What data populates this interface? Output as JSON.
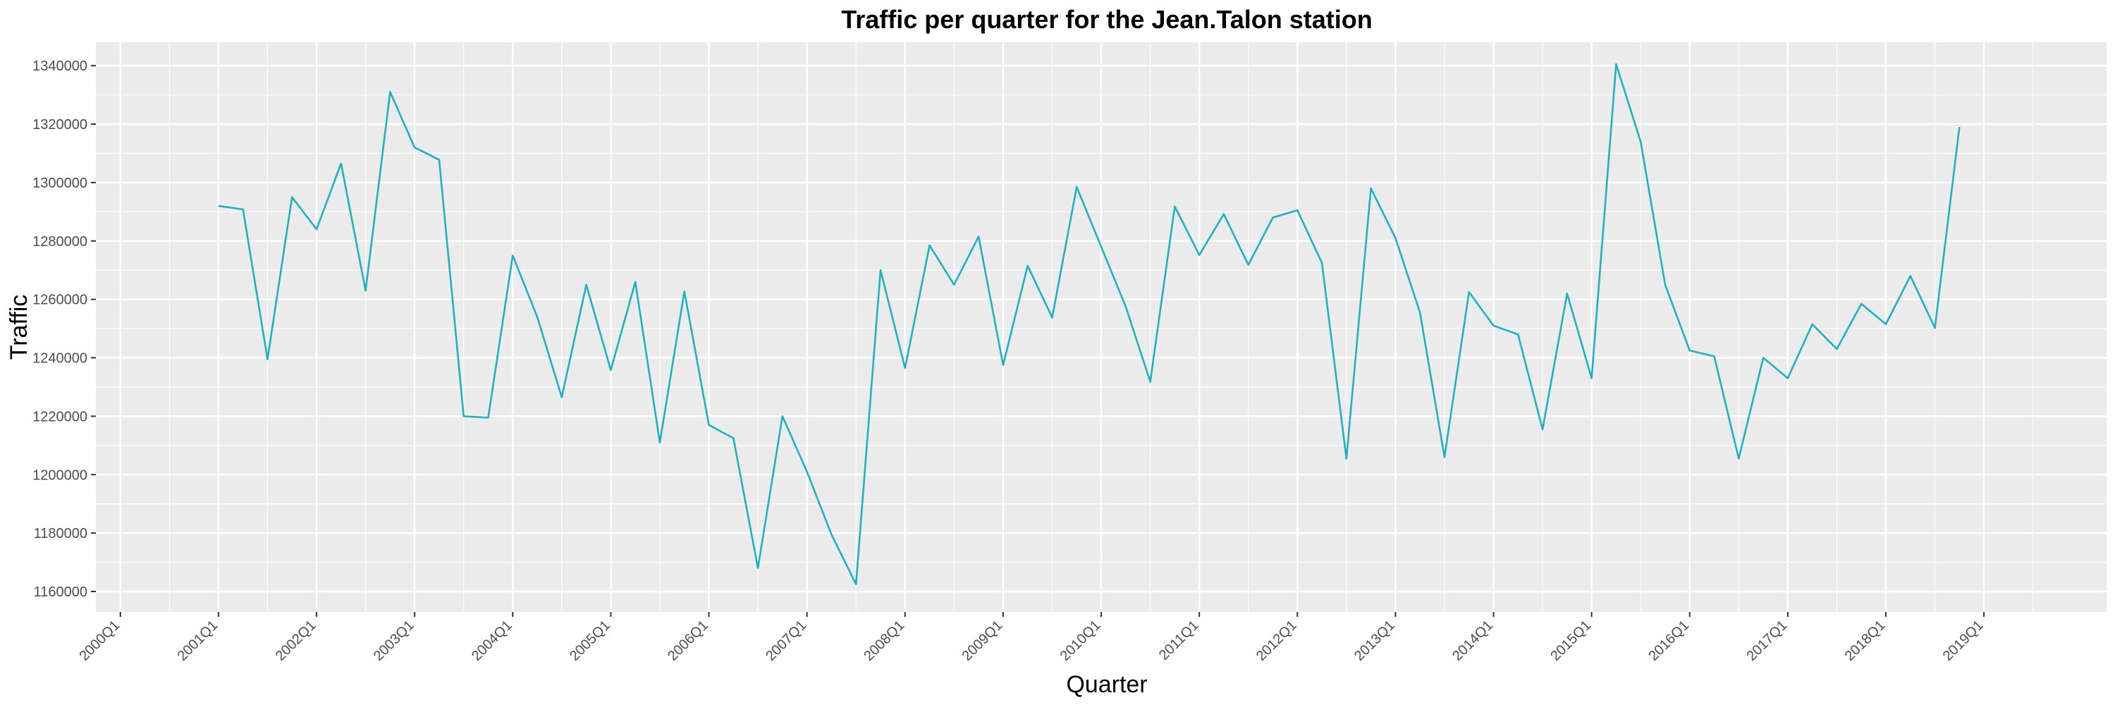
{
  "chart_data": {
    "type": "line",
    "title": "Traffic per quarter for the Jean.Talon station",
    "xlabel": "Quarter",
    "ylabel": "Traffic",
    "grid": true,
    "legend": "none",
    "line_color": "#1fb1c1",
    "panel_color": "#ebebeb",
    "x_ticks": [
      "2000Q1",
      "2001Q1",
      "2002Q1",
      "2003Q1",
      "2004Q1",
      "2005Q1",
      "2006Q1",
      "2007Q1",
      "2008Q1",
      "2009Q1",
      "2010Q1",
      "2011Q1",
      "2012Q1",
      "2013Q1",
      "2014Q1",
      "2015Q1",
      "2016Q1",
      "2017Q1",
      "2018Q1",
      "2019Q1"
    ],
    "y_ticks": [
      1160000,
      1180000,
      1200000,
      1220000,
      1240000,
      1260000,
      1280000,
      1300000,
      1320000,
      1340000
    ],
    "y_tick_labels": [
      "1160000",
      "1180000",
      "1200000",
      "1220000",
      "1240000",
      "1260000",
      "1280000",
      "1300000",
      "1320000",
      "1340000"
    ],
    "x_range": [
      "1999Q4",
      "2020Q2"
    ],
    "ylim": [
      1153000,
      1348000
    ],
    "x": [
      "2001Q1",
      "2001Q2",
      "2001Q3",
      "2001Q4",
      "2002Q1",
      "2002Q2",
      "2002Q3",
      "2002Q4",
      "2003Q1",
      "2003Q2",
      "2003Q3",
      "2003Q4",
      "2004Q1",
      "2004Q2",
      "2004Q3",
      "2004Q4",
      "2005Q1",
      "2005Q2",
      "2005Q3",
      "2005Q4",
      "2006Q1",
      "2006Q2",
      "2006Q3",
      "2006Q4",
      "2007Q1",
      "2007Q2",
      "2007Q3",
      "2007Q4",
      "2008Q1",
      "2008Q2",
      "2008Q3",
      "2008Q4",
      "2009Q1",
      "2009Q2",
      "2009Q3",
      "2009Q4",
      "2010Q1",
      "2010Q2",
      "2010Q3",
      "2010Q4",
      "2011Q1",
      "2011Q2",
      "2011Q3",
      "2011Q4",
      "2012Q1",
      "2012Q2",
      "2012Q3",
      "2012Q4",
      "2013Q1",
      "2013Q2",
      "2013Q3",
      "2013Q4",
      "2014Q1",
      "2014Q2",
      "2014Q3",
      "2014Q4",
      "2015Q1",
      "2015Q2",
      "2015Q3",
      "2015Q4",
      "2016Q1",
      "2016Q2",
      "2016Q3",
      "2016Q4",
      "2017Q1",
      "2017Q2",
      "2017Q3",
      "2017Q4",
      "2018Q1",
      "2018Q2",
      "2018Q3",
      "2018Q4"
    ],
    "values": [
      1292000,
      1290800,
      1239500,
      1295000,
      1284000,
      1306500,
      1263000,
      1331000,
      1312000,
      1307800,
      1220000,
      1219500,
      1275000,
      1254000,
      1226500,
      1265000,
      1235800,
      1266000,
      1211000,
      1262700,
      1217000,
      1212500,
      1168000,
      1220000,
      1201000,
      1179500,
      1162500,
      1270000,
      1236500,
      1278500,
      1265000,
      1281500,
      1237500,
      1271500,
      1253800,
      1298500,
      1278000,
      1257500,
      1231800,
      1291800,
      1275200,
      1289200,
      1271800,
      1288000,
      1290500,
      1272500,
      1205500,
      1298000,
      1281000,
      1255500,
      1206000,
      1262500,
      1251000,
      1248000,
      1215500,
      1262000,
      1233000,
      1340500,
      1314000,
      1265000,
      1242500,
      1240500,
      1205500,
      1240000,
      1233000,
      1251500,
      1243000,
      1258500,
      1251500,
      1268000,
      1250200,
      1319000
    ]
  }
}
